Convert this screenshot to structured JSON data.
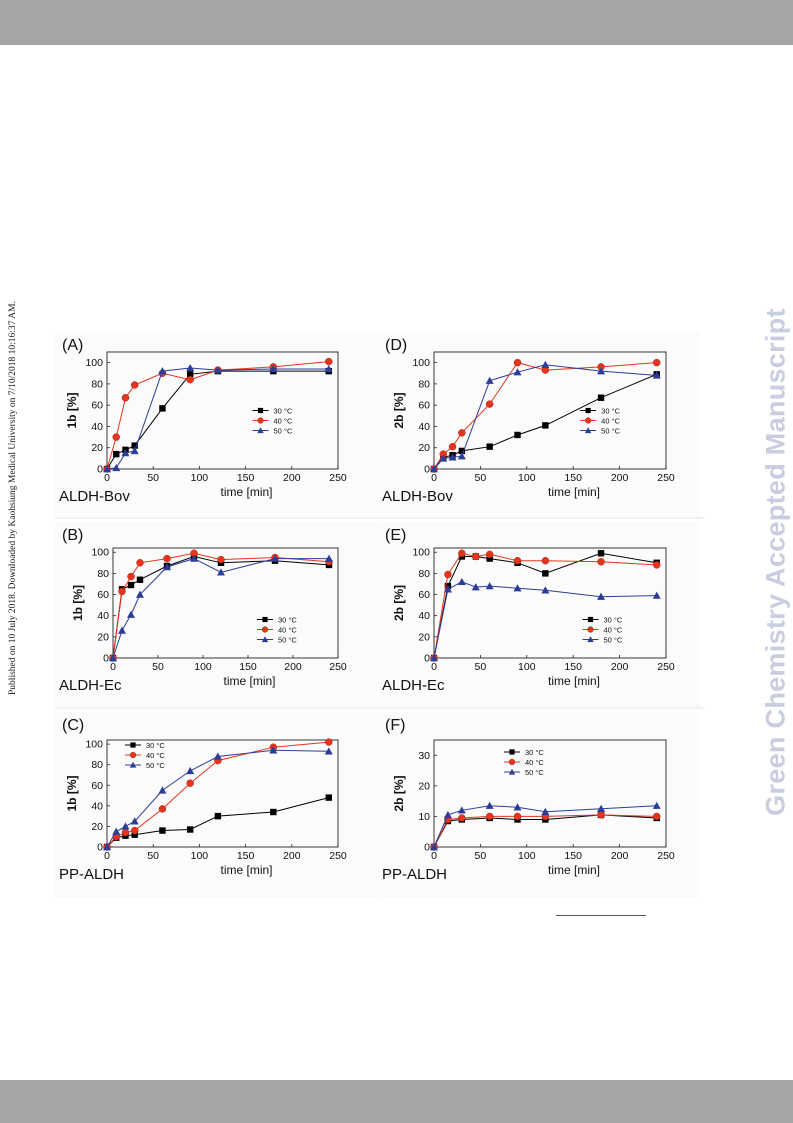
{
  "page": {
    "watermark_right": "Green Chemistry Accepted Manuscript",
    "side_note_left": "Published on 10 July 2018. Downloaded by Kaohsiung Medical University on 7/10/2018 10:16:37 AM."
  },
  "chart_data": [
    {
      "type": "line",
      "panel": "(A)",
      "enzyme": "ALDH-Bov",
      "xlabel": "time [min]",
      "ylabel": "1b [%]",
      "xlim": [
        0,
        250
      ],
      "ylim": [
        0,
        110
      ],
      "xticks": [
        0,
        50,
        100,
        150,
        200,
        250
      ],
      "yticks": [
        0,
        20,
        40,
        60,
        80,
        100
      ],
      "legend": "center-right",
      "legend_labels": [
        "30 °C",
        "40 °C",
        "50 °C"
      ],
      "series": [
        {
          "name": "30 °C",
          "color": "#000000",
          "marker": "square",
          "x": [
            0,
            10,
            20,
            30,
            60,
            90,
            120,
            180,
            240
          ],
          "y": [
            0,
            14,
            18,
            22,
            57,
            89,
            92,
            92,
            92
          ]
        },
        {
          "name": "40 °C",
          "color": "#e8341c",
          "marker": "circle",
          "x": [
            0,
            10,
            20,
            30,
            60,
            90,
            120,
            180,
            240
          ],
          "y": [
            0,
            30,
            67,
            79,
            90,
            84,
            93,
            96,
            101
          ]
        },
        {
          "name": "50 °C",
          "color": "#2c3d99",
          "marker": "triangle",
          "x": [
            0,
            10,
            20,
            30,
            60,
            90,
            120,
            180,
            240
          ],
          "y": [
            0,
            1,
            15,
            17,
            92,
            95,
            93,
            94,
            94
          ]
        }
      ]
    },
    {
      "type": "line",
      "panel": "(B)",
      "enzyme": "ALDH-Ec",
      "xlabel": "time [min]",
      "ylabel": "1b [%]",
      "xlim": [
        0,
        250
      ],
      "ylim": [
        0,
        104
      ],
      "xticks": [
        0,
        50,
        100,
        150,
        200,
        250
      ],
      "yticks": [
        0,
        20,
        40,
        60,
        80,
        100
      ],
      "legend": "bottom-right",
      "legend_labels": [
        "30 °C",
        "40 °C",
        "50 °C"
      ],
      "series": [
        {
          "name": "30 °C",
          "color": "#000000",
          "marker": "square",
          "x": [
            0,
            10,
            20,
            30,
            60,
            90,
            120,
            180,
            240
          ],
          "y": [
            0,
            65,
            69,
            74,
            87,
            96,
            90,
            92,
            88
          ]
        },
        {
          "name": "40 °C",
          "color": "#e8341c",
          "marker": "circle",
          "x": [
            0,
            10,
            20,
            30,
            60,
            90,
            120,
            180,
            240
          ],
          "y": [
            0,
            63,
            77,
            90,
            94,
            99,
            93,
            95,
            91
          ]
        },
        {
          "name": "50 °C",
          "color": "#2c3d99",
          "marker": "triangle",
          "x": [
            0,
            10,
            20,
            30,
            60,
            90,
            120,
            180,
            240
          ],
          "y": [
            0,
            26,
            41,
            60,
            86,
            94,
            81,
            94,
            94
          ]
        }
      ]
    },
    {
      "type": "line",
      "panel": "(C)",
      "enzyme": "PP-ALDH",
      "xlabel": "time [min]",
      "ylabel": "1b [%]",
      "xlim": [
        0,
        250
      ],
      "ylim": [
        0,
        104
      ],
      "xticks": [
        0,
        50,
        100,
        150,
        200,
        250
      ],
      "yticks": [
        0,
        20,
        40,
        60,
        80,
        100
      ],
      "legend": "top-left",
      "legend_labels": [
        "30 °C",
        "40 °C",
        "50 °C"
      ],
      "series": [
        {
          "name": "30 °C",
          "color": "#000000",
          "marker": "square",
          "x": [
            0,
            10,
            20,
            30,
            60,
            90,
            120,
            180,
            240
          ],
          "y": [
            0,
            9,
            11,
            12,
            16,
            17,
            30,
            34,
            48
          ]
        },
        {
          "name": "40 °C",
          "color": "#e8341c",
          "marker": "circle",
          "x": [
            0,
            10,
            20,
            30,
            60,
            90,
            120,
            180,
            240
          ],
          "y": [
            0,
            10,
            14,
            16,
            37,
            62,
            84,
            97,
            102
          ]
        },
        {
          "name": "50 °C",
          "color": "#2c3d99",
          "marker": "triangle",
          "x": [
            0,
            10,
            20,
            30,
            60,
            90,
            120,
            180,
            240
          ],
          "y": [
            0,
            15,
            20,
            25,
            55,
            74,
            88,
            94,
            93
          ]
        }
      ]
    },
    {
      "type": "line",
      "panel": "(D)",
      "enzyme": "ALDH-Bov",
      "xlabel": "time [min]",
      "ylabel": "2b [%]",
      "xlim": [
        0,
        250
      ],
      "ylim": [
        0,
        110
      ],
      "xticks": [
        0,
        50,
        100,
        150,
        200,
        250
      ],
      "yticks": [
        0,
        20,
        40,
        60,
        80,
        100
      ],
      "legend": "center-right",
      "legend_labels": [
        "30 °C",
        "40 °C",
        "50 °C"
      ],
      "series": [
        {
          "name": "30 °C",
          "color": "#000000",
          "marker": "square",
          "x": [
            0,
            10,
            20,
            30,
            60,
            90,
            120,
            180,
            240
          ],
          "y": [
            0,
            11,
            13,
            17,
            21,
            32,
            41,
            67,
            89
          ]
        },
        {
          "name": "40 °C",
          "color": "#e8341c",
          "marker": "circle",
          "x": [
            0,
            10,
            20,
            30,
            60,
            90,
            120,
            180,
            240
          ],
          "y": [
            0,
            14,
            21,
            34,
            61,
            100,
            93,
            96,
            100
          ]
        },
        {
          "name": "50 °C",
          "color": "#2c3d99",
          "marker": "triangle",
          "x": [
            0,
            10,
            20,
            30,
            60,
            90,
            120,
            180,
            240
          ],
          "y": [
            0,
            10,
            11,
            12,
            83,
            91,
            98,
            92,
            88
          ]
        }
      ]
    },
    {
      "type": "line",
      "panel": "(E)",
      "enzyme": "ALDH-Ec",
      "xlabel": "time [min]",
      "ylabel": "2b [%]",
      "xlim": [
        0,
        250
      ],
      "ylim": [
        0,
        104
      ],
      "xticks": [
        0,
        50,
        100,
        150,
        200,
        250
      ],
      "yticks": [
        0,
        20,
        40,
        60,
        80,
        100
      ],
      "legend": "bottom-right",
      "legend_labels": [
        "30 °C",
        "40 °C",
        "50 °C"
      ],
      "series": [
        {
          "name": "30 °C",
          "color": "#000000",
          "marker": "square",
          "x": [
            0,
            15,
            30,
            45,
            60,
            90,
            120,
            180,
            240
          ],
          "y": [
            0,
            68,
            96,
            96,
            94,
            90,
            80,
            99,
            90
          ]
        },
        {
          "name": "40 °C",
          "color": "#e8341c",
          "marker": "circle",
          "x": [
            0,
            15,
            30,
            45,
            60,
            90,
            120,
            180,
            240
          ],
          "y": [
            0,
            79,
            99,
            96,
            98,
            92,
            92,
            91,
            88
          ]
        },
        {
          "name": "50 °C",
          "color": "#2c3d99",
          "marker": "triangle",
          "x": [
            0,
            15,
            30,
            45,
            60,
            90,
            120,
            180,
            240
          ],
          "y": [
            0,
            65,
            72,
            67,
            68,
            66,
            64,
            58,
            59
          ]
        }
      ]
    },
    {
      "type": "line",
      "panel": "(F)",
      "enzyme": "PP-ALDH",
      "xlabel": "time [min]",
      "ylabel": "2b [%]",
      "xlim": [
        0,
        250
      ],
      "ylim": [
        0,
        35
      ],
      "xticks": [
        0,
        50,
        100,
        150,
        200,
        250
      ],
      "yticks": [
        0,
        10,
        20,
        30
      ],
      "legend": "top-left",
      "legend_labels": [
        "30 °C",
        "40 °C",
        "50 °C"
      ],
      "series": [
        {
          "name": "30 °C",
          "color": "#000000",
          "marker": "square",
          "x": [
            0,
            15,
            30,
            60,
            90,
            120,
            180,
            240
          ],
          "y": [
            0,
            8.5,
            9,
            9.5,
            9,
            9,
            10.5,
            9.5
          ]
        },
        {
          "name": "40 °C",
          "color": "#e8341c",
          "marker": "circle",
          "x": [
            0,
            15,
            30,
            60,
            90,
            120,
            180,
            240
          ],
          "y": [
            0,
            9,
            9.5,
            10,
            10,
            10,
            10.5,
            10
          ]
        },
        {
          "name": "50 °C",
          "color": "#2c3d99",
          "marker": "triangle",
          "x": [
            0,
            15,
            30,
            60,
            90,
            120,
            180,
            240
          ],
          "y": [
            0,
            10.5,
            12,
            13.5,
            13,
            11.5,
            12.5,
            13.5
          ]
        }
      ]
    }
  ]
}
